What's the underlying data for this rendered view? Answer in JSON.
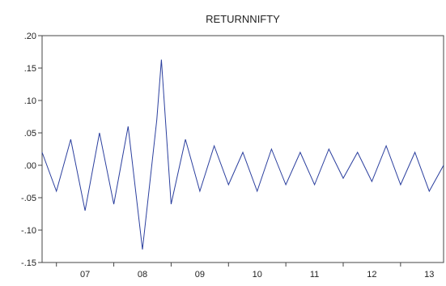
{
  "chart_data": {
    "type": "line",
    "title": "RETURNNIFTY",
    "xlabel": "",
    "ylabel": "",
    "x_range": [
      2006.75,
      2013.75
    ],
    "ylim": [
      -0.15,
      0.2
    ],
    "y_ticks": [
      {
        "value": 0.2,
        "label": ".20"
      },
      {
        "value": 0.15,
        "label": ".15"
      },
      {
        "value": 0.1,
        "label": ".10"
      },
      {
        "value": 0.05,
        "label": ".05"
      },
      {
        "value": 0.0,
        "label": ".00"
      },
      {
        "value": -0.05,
        "label": "-.05"
      },
      {
        "value": -0.1,
        "label": "-.10"
      },
      {
        "value": -0.15,
        "label": "-.15"
      }
    ],
    "x_ticks": [
      {
        "value": 2007,
        "label": "07"
      },
      {
        "value": 2008,
        "label": "08"
      },
      {
        "value": 2009,
        "label": "09"
      },
      {
        "value": 2010,
        "label": "10"
      },
      {
        "value": 2011,
        "label": "11"
      },
      {
        "value": 2012,
        "label": "12"
      },
      {
        "value": 2013,
        "label": "13"
      }
    ],
    "grid": false,
    "legend": "none",
    "series": [
      {
        "color": "#2b3f9e",
        "x": [
          2006.75,
          2007.0,
          2007.25,
          2007.5,
          2007.75,
          2008.0,
          2008.25,
          2008.5,
          2008.75,
          2008.83,
          2009.0,
          2009.25,
          2009.5,
          2009.75,
          2010.0,
          2010.25,
          2010.5,
          2010.75,
          2011.0,
          2011.25,
          2011.5,
          2011.75,
          2012.0,
          2012.25,
          2012.5,
          2012.75,
          2013.0,
          2013.25,
          2013.5,
          2013.75
        ],
        "y": [
          0.02,
          -0.04,
          0.04,
          -0.07,
          0.05,
          -0.06,
          0.06,
          -0.13,
          0.07,
          0.163,
          -0.06,
          0.04,
          -0.04,
          0.03,
          -0.03,
          0.02,
          -0.04,
          0.025,
          -0.03,
          0.02,
          -0.03,
          0.025,
          -0.02,
          0.02,
          -0.025,
          0.03,
          -0.03,
          0.02,
          -0.04,
          0.0
        ]
      }
    ]
  }
}
